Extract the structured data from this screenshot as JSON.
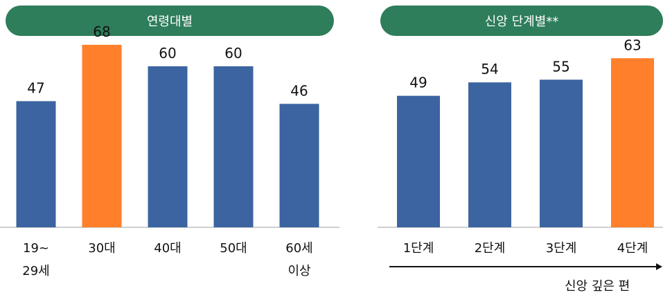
{
  "chart_data": [
    {
      "type": "bar",
      "title": "연령대별",
      "categories": [
        [
          "19~",
          "29세"
        ],
        [
          "30대"
        ],
        [
          "40대"
        ],
        [
          "50대"
        ],
        [
          "60세",
          "이상"
        ]
      ],
      "values": [
        47,
        68,
        60,
        60,
        46
      ],
      "highlight_index": 1,
      "ylim": [
        0,
        78
      ],
      "grid": false,
      "colors": {
        "bar": "#3b64a0",
        "highlight": "#ff7f2a",
        "header": "#2e7d5b"
      }
    },
    {
      "type": "bar",
      "title": "신앙 단계별**",
      "categories": [
        [
          "1단계"
        ],
        [
          "2단계"
        ],
        [
          "3단계"
        ],
        [
          "4단계"
        ]
      ],
      "values": [
        49,
        54,
        55,
        63
      ],
      "highlight_index": 3,
      "ylim": [
        0,
        78
      ],
      "grid": false,
      "arrow_label": "신앙 깊은 편",
      "colors": {
        "bar": "#3b64a0",
        "highlight": "#ff7f2a",
        "header": "#2e7d5b"
      }
    }
  ]
}
